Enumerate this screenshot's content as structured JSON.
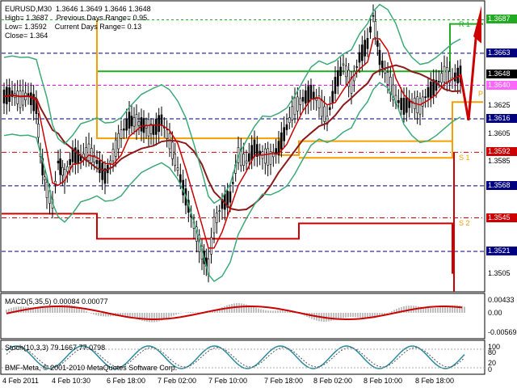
{
  "symbol_line": "EURUSD,M30  1.3646 1.3649 1.3646 1.3648",
  "high_line": "High= 1.3687    Previous Days Range= 0.95",
  "low_line": "Low= 1.3592    Current Days Range= 0.13",
  "close_line": "Close= 1.364",
  "macd_label": "MACD(5,35,5) 0.00084 0.00077",
  "stoch_label": "Stoch(10,3,3) 79.1667 77.0798",
  "copyright": "BMF-Meta, © 2001-2010 MetaQuotes Software Corp.",
  "colors": {
    "green": "#22aa22",
    "orange": "#f5a000",
    "red": "#cc0000",
    "darkred": "#8b1a1a",
    "boll": "#3caa78",
    "navy": "#000080",
    "magenta": "#ff00ff",
    "gray": "#c0c0c0"
  },
  "price_tags": [
    {
      "value": "1.3687",
      "style": "green",
      "price": 1.3687
    },
    {
      "value": "1.3663",
      "style": "navy",
      "price": 1.3663
    },
    {
      "value": "1.3648",
      "style": "black",
      "price": 1.3648
    },
    {
      "value": "1.3640",
      "style": "magenta",
      "price": 1.364
    },
    {
      "value": "1.3616",
      "style": "navy",
      "price": 1.3616
    },
    {
      "value": "1.3592",
      "style": "red",
      "price": 1.3592
    },
    {
      "value": "1.3568",
      "style": "navy",
      "price": 1.3568
    },
    {
      "value": "1.3545",
      "style": "red",
      "price": 1.3545
    },
    {
      "value": "1.3521",
      "style": "navy",
      "price": 1.3521
    }
  ],
  "price_axis": [
    {
      "value": "1.3625",
      "price": 1.3625
    },
    {
      "value": "1.3605",
      "price": 1.3605
    },
    {
      "value": "1.3585",
      "price": 1.3585
    },
    {
      "value": "1.3505",
      "price": 1.3505
    }
  ],
  "macd_axis": [
    "0.00433",
    "0.00",
    "-0.00569"
  ],
  "stoch_axis": [
    "100",
    "80",
    "20",
    "0"
  ],
  "time_axis": [
    "4 Feb 2011",
    "4 Feb 10:30",
    "6 Feb 18:00",
    "7 Feb 02:00",
    "7 Feb 10:00",
    "7 Feb 18:00",
    "8 Feb 02:00",
    "8 Feb 10:00",
    "8 Feb 18:00"
  ],
  "levels": [
    {
      "text": "R 1",
      "price": 1.3684
    },
    {
      "text": "P",
      "price": 1.3634
    },
    {
      "text": "S 1",
      "price": 1.3588
    },
    {
      "text": "S 2",
      "price": 1.3541
    }
  ]
}
